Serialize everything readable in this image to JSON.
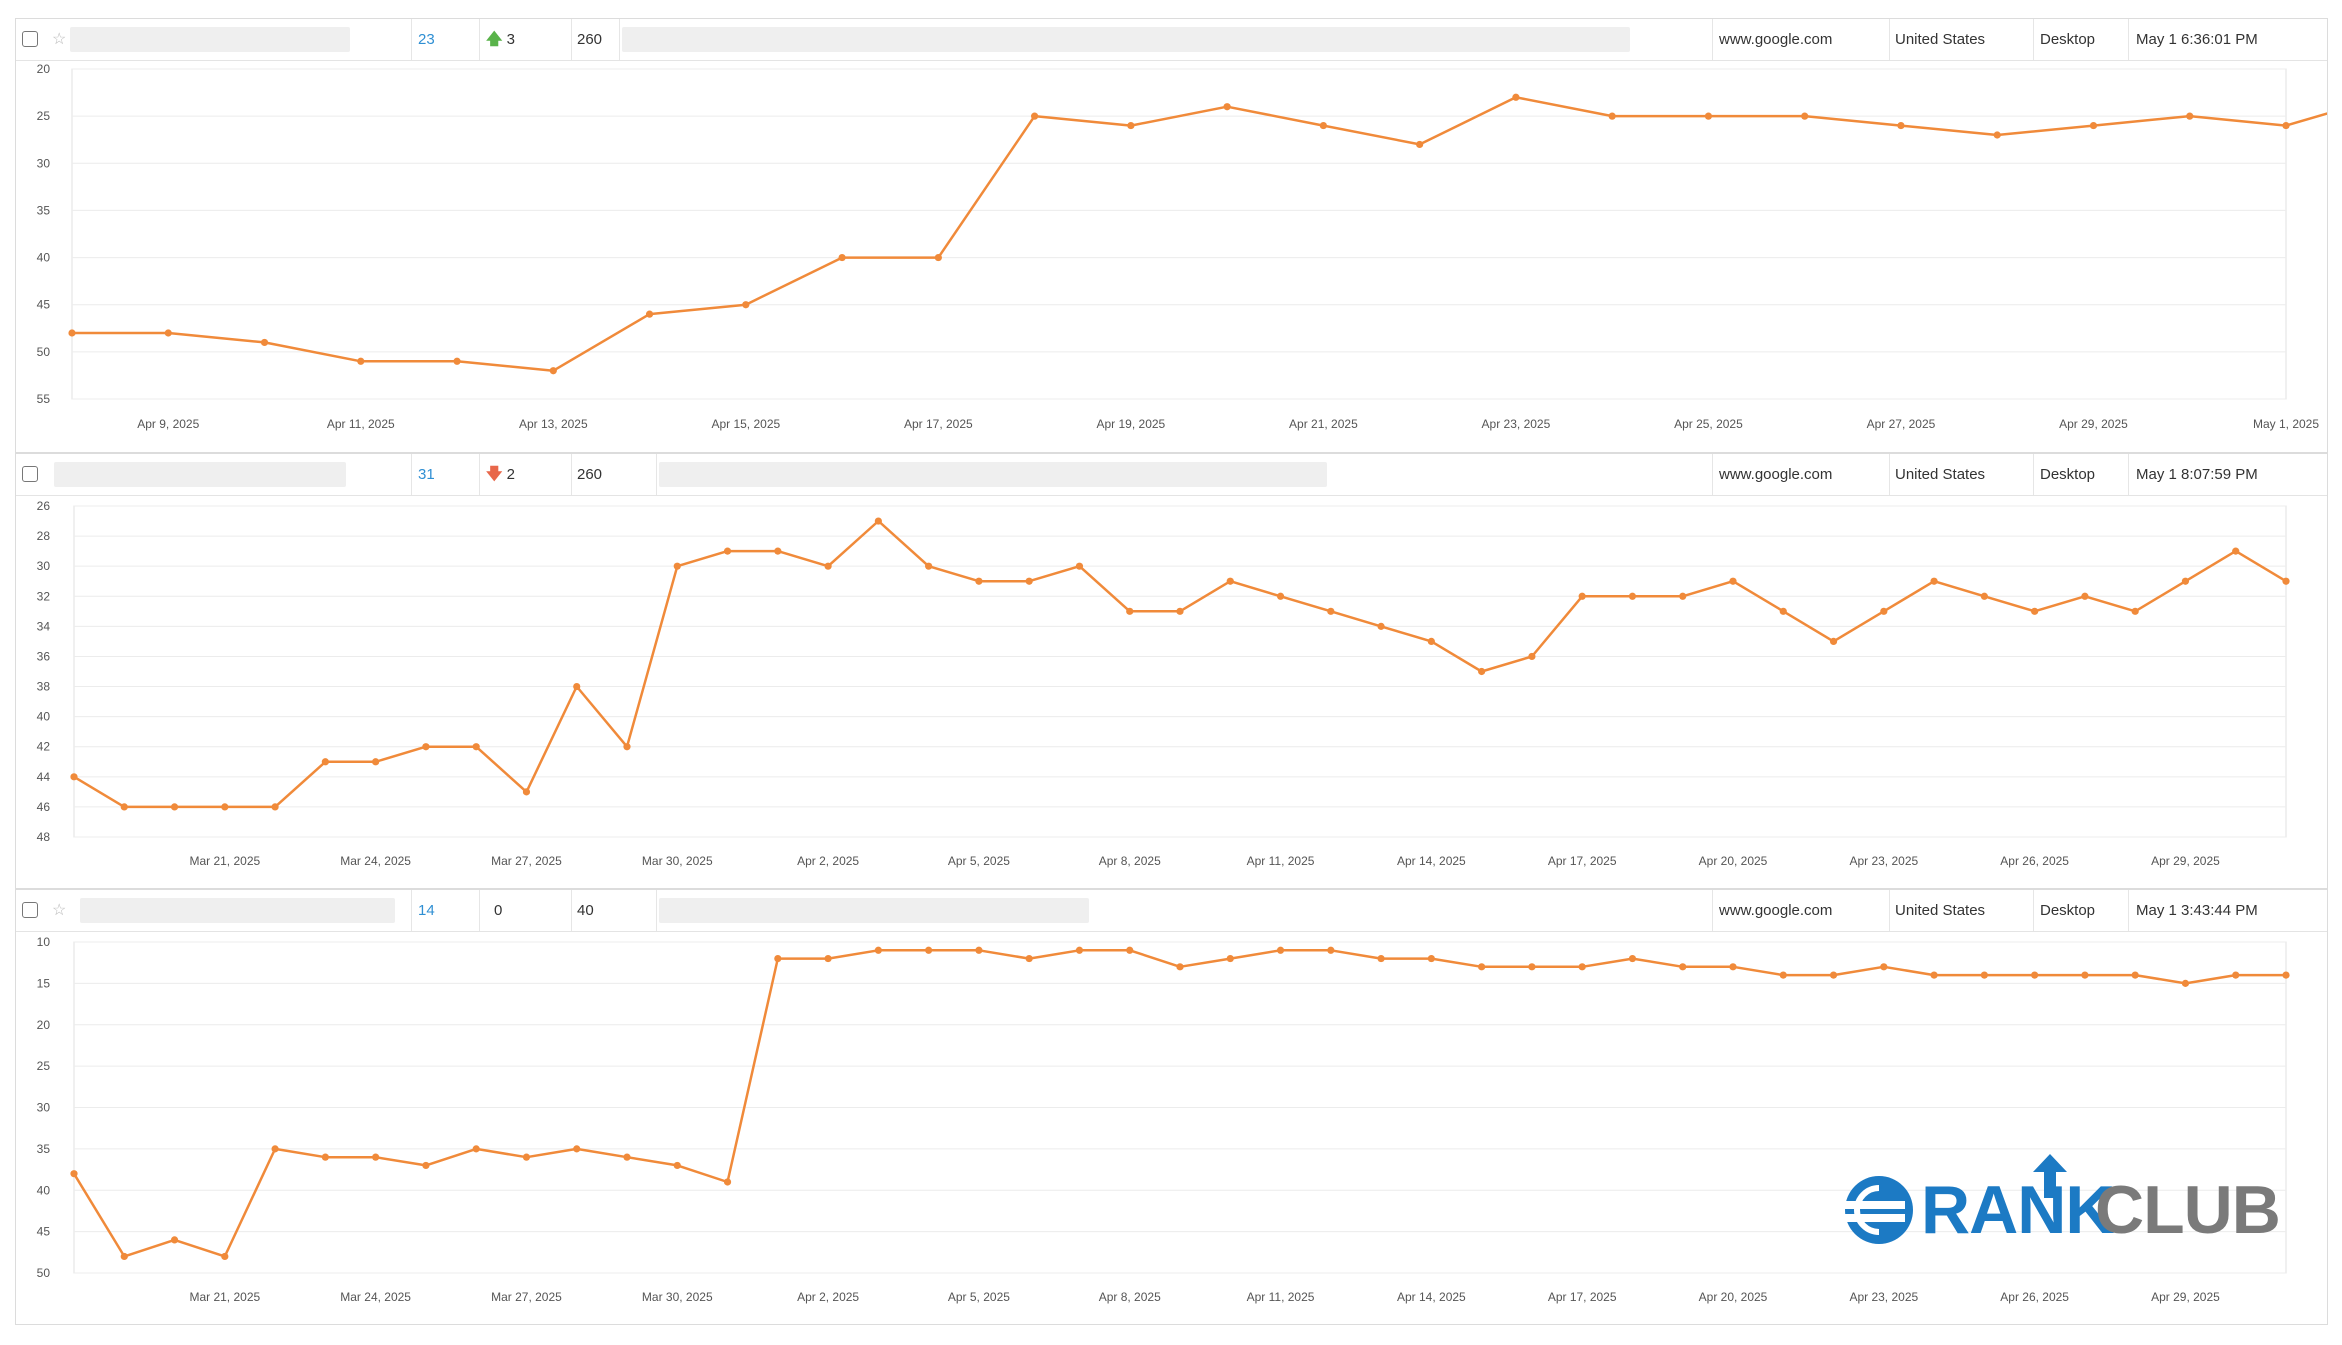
{
  "colors": {
    "line": "#f08a3a",
    "rank_link": "#2f8fd3",
    "up": "#59b34a",
    "down": "#e8674a",
    "grid": "#ececec"
  },
  "rows": [
    {
      "rank": "23",
      "change": "3",
      "direction": "up",
      "volume": "260",
      "engine": "www.google.com",
      "country": "United States",
      "device": "Desktop",
      "updated": "May 1 6:36:01 PM",
      "starred": true,
      "chart_data": {
        "type": "line",
        "y_reversed": true,
        "ylim": [
          20,
          55
        ],
        "yticks": [
          "20",
          "25",
          "30",
          "35",
          "40",
          "45",
          "50",
          "55"
        ],
        "x_range": [
          "2025-04-08",
          "2025-05-01"
        ],
        "xticks": [
          "Apr 9, 2025",
          "Apr 11, 2025",
          "Apr 13, 2025",
          "Apr 15, 2025",
          "Apr 17, 2025",
          "Apr 19, 2025",
          "Apr 21, 2025",
          "Apr 23, 2025",
          "Apr 25, 2025",
          "Apr 27, 2025",
          "Apr 29, 2025",
          "May 1, 2025"
        ],
        "xtick_dates": [
          "2025-04-09",
          "2025-04-11",
          "2025-04-13",
          "2025-04-15",
          "2025-04-17",
          "2025-04-19",
          "2025-04-21",
          "2025-04-23",
          "2025-04-25",
          "2025-04-27",
          "2025-04-29",
          "2025-05-01"
        ],
        "points": [
          [
            "2025-04-08",
            48
          ],
          [
            "2025-04-09",
            48
          ],
          [
            "2025-04-10",
            49
          ],
          [
            "2025-04-11",
            51
          ],
          [
            "2025-04-12",
            51
          ],
          [
            "2025-04-13",
            52
          ],
          [
            "2025-04-14",
            46
          ],
          [
            "2025-04-15",
            45
          ],
          [
            "2025-04-16",
            40
          ],
          [
            "2025-04-17",
            40
          ],
          [
            "2025-04-18",
            25
          ],
          [
            "2025-04-19",
            26
          ],
          [
            "2025-04-20",
            24
          ],
          [
            "2025-04-21",
            26
          ],
          [
            "2025-04-22",
            28
          ],
          [
            "2025-04-23",
            23
          ],
          [
            "2025-04-24",
            25
          ],
          [
            "2025-04-25",
            25
          ],
          [
            "2025-04-26",
            25
          ],
          [
            "2025-04-27",
            26
          ],
          [
            "2025-04-28",
            27
          ],
          [
            "2025-04-29",
            26
          ],
          [
            "2025-04-30",
            25
          ],
          [
            "2025-05-01",
            26
          ],
          [
            "2025-05-02",
            23
          ]
        ]
      }
    },
    {
      "rank": "31",
      "change": "2",
      "direction": "down",
      "volume": "260",
      "engine": "www.google.com",
      "country": "United States",
      "device": "Desktop",
      "updated": "May 1 8:07:59 PM",
      "starred": false,
      "chart_data": {
        "type": "line",
        "y_reversed": true,
        "ylim": [
          26,
          48
        ],
        "yticks": [
          "26",
          "28",
          "30",
          "32",
          "34",
          "36",
          "38",
          "40",
          "42",
          "44",
          "46",
          "48"
        ],
        "xticks": [
          "Mar 21, 2025",
          "Mar 24, 2025",
          "Mar 27, 2025",
          "Mar 30, 2025",
          "Apr 2, 2025",
          "Apr 5, 2025",
          "Apr 8, 2025",
          "Apr 11, 2025",
          "Apr 14, 2025",
          "Apr 17, 2025",
          "Apr 20, 2025",
          "Apr 23, 2025",
          "Apr 26, 2025",
          "Apr 29, 2025"
        ],
        "xtick_dates": [
          "2025-03-21",
          "2025-03-24",
          "2025-03-27",
          "2025-03-30",
          "2025-04-02",
          "2025-04-05",
          "2025-04-08",
          "2025-04-11",
          "2025-04-14",
          "2025-04-17",
          "2025-04-20",
          "2025-04-23",
          "2025-04-26",
          "2025-04-29"
        ],
        "x_range": [
          "2025-03-18",
          "2025-05-01"
        ],
        "points": [
          [
            "2025-03-18",
            44
          ],
          [
            "2025-03-19",
            46
          ],
          [
            "2025-03-20",
            46
          ],
          [
            "2025-03-21",
            46
          ],
          [
            "2025-03-22",
            46
          ],
          [
            "2025-03-23",
            43
          ],
          [
            "2025-03-24",
            43
          ],
          [
            "2025-03-25",
            42
          ],
          [
            "2025-03-26",
            42
          ],
          [
            "2025-03-27",
            45
          ],
          [
            "2025-03-28",
            38
          ],
          [
            "2025-03-29",
            42
          ],
          [
            "2025-03-30",
            30
          ],
          [
            "2025-03-31",
            29
          ],
          [
            "2025-04-01",
            29
          ],
          [
            "2025-04-02",
            30
          ],
          [
            "2025-04-03",
            27
          ],
          [
            "2025-04-04",
            30
          ],
          [
            "2025-04-05",
            31
          ],
          [
            "2025-04-06",
            31
          ],
          [
            "2025-04-07",
            30
          ],
          [
            "2025-04-08",
            33
          ],
          [
            "2025-04-09",
            33
          ],
          [
            "2025-04-10",
            31
          ],
          [
            "2025-04-11",
            32
          ],
          [
            "2025-04-12",
            33
          ],
          [
            "2025-04-13",
            34
          ],
          [
            "2025-04-14",
            35
          ],
          [
            "2025-04-15",
            37
          ],
          [
            "2025-04-16",
            36
          ],
          [
            "2025-04-17",
            32
          ],
          [
            "2025-04-18",
            32
          ],
          [
            "2025-04-19",
            32
          ],
          [
            "2025-04-20",
            31
          ],
          [
            "2025-04-21",
            33
          ],
          [
            "2025-04-22",
            35
          ],
          [
            "2025-04-23",
            33
          ],
          [
            "2025-04-24",
            31
          ],
          [
            "2025-04-25",
            32
          ],
          [
            "2025-04-26",
            33
          ],
          [
            "2025-04-27",
            32
          ],
          [
            "2025-04-28",
            33
          ],
          [
            "2025-04-29",
            31
          ],
          [
            "2025-04-30",
            29
          ],
          [
            "2025-05-01",
            31
          ]
        ]
      }
    },
    {
      "rank": "14",
      "change": "0",
      "direction": "none",
      "volume": "40",
      "engine": "www.google.com",
      "country": "United States",
      "device": "Desktop",
      "updated": "May 1 3:43:44 PM",
      "starred": true,
      "chart_data": {
        "type": "line",
        "y_reversed": true,
        "ylim": [
          10,
          50
        ],
        "yticks": [
          "10",
          "15",
          "20",
          "25",
          "30",
          "35",
          "40",
          "45",
          "50"
        ],
        "xticks": [
          "Mar 21, 2025",
          "Mar 24, 2025",
          "Mar 27, 2025",
          "Mar 30, 2025",
          "Apr 2, 2025",
          "Apr 5, 2025",
          "Apr 8, 2025",
          "Apr 11, 2025",
          "Apr 14, 2025",
          "Apr 17, 2025",
          "Apr 20, 2025",
          "Apr 23, 2025",
          "Apr 26, 2025",
          "Apr 29, 2025"
        ],
        "xtick_dates": [
          "2025-03-21",
          "2025-03-24",
          "2025-03-27",
          "2025-03-30",
          "2025-04-02",
          "2025-04-05",
          "2025-04-08",
          "2025-04-11",
          "2025-04-14",
          "2025-04-17",
          "2025-04-20",
          "2025-04-23",
          "2025-04-26",
          "2025-04-29"
        ],
        "x_range": [
          "2025-03-18",
          "2025-05-01"
        ],
        "points": [
          [
            "2025-03-18",
            38
          ],
          [
            "2025-03-19",
            48
          ],
          [
            "2025-03-20",
            46
          ],
          [
            "2025-03-21",
            48
          ],
          [
            "2025-03-22",
            35
          ],
          [
            "2025-03-23",
            36
          ],
          [
            "2025-03-24",
            36
          ],
          [
            "2025-03-25",
            37
          ],
          [
            "2025-03-26",
            35
          ],
          [
            "2025-03-27",
            36
          ],
          [
            "2025-03-28",
            35
          ],
          [
            "2025-03-29",
            36
          ],
          [
            "2025-03-30",
            37
          ],
          [
            "2025-03-31",
            39
          ],
          [
            "2025-04-01",
            12
          ],
          [
            "2025-04-02",
            12
          ],
          [
            "2025-04-03",
            11
          ],
          [
            "2025-04-04",
            11
          ],
          [
            "2025-04-05",
            11
          ],
          [
            "2025-04-06",
            12
          ],
          [
            "2025-04-07",
            11
          ],
          [
            "2025-04-08",
            11
          ],
          [
            "2025-04-09",
            13
          ],
          [
            "2025-04-10",
            12
          ],
          [
            "2025-04-11",
            11
          ],
          [
            "2025-04-12",
            11
          ],
          [
            "2025-04-13",
            12
          ],
          [
            "2025-04-14",
            12
          ],
          [
            "2025-04-15",
            13
          ],
          [
            "2025-04-16",
            13
          ],
          [
            "2025-04-17",
            13
          ],
          [
            "2025-04-18",
            12
          ],
          [
            "2025-04-19",
            13
          ],
          [
            "2025-04-20",
            13
          ],
          [
            "2025-04-21",
            14
          ],
          [
            "2025-04-22",
            14
          ],
          [
            "2025-04-23",
            13
          ],
          [
            "2025-04-24",
            14
          ],
          [
            "2025-04-25",
            14
          ],
          [
            "2025-04-26",
            14
          ],
          [
            "2025-04-27",
            14
          ],
          [
            "2025-04-28",
            14
          ],
          [
            "2025-04-29",
            15
          ],
          [
            "2025-04-30",
            14
          ],
          [
            "2025-05-01",
            14
          ]
        ]
      }
    }
  ],
  "logo": {
    "part1": "RANK",
    "part2": "CLUB",
    "color1": "#1c7ac4",
    "color2": "#7a7a7a"
  }
}
